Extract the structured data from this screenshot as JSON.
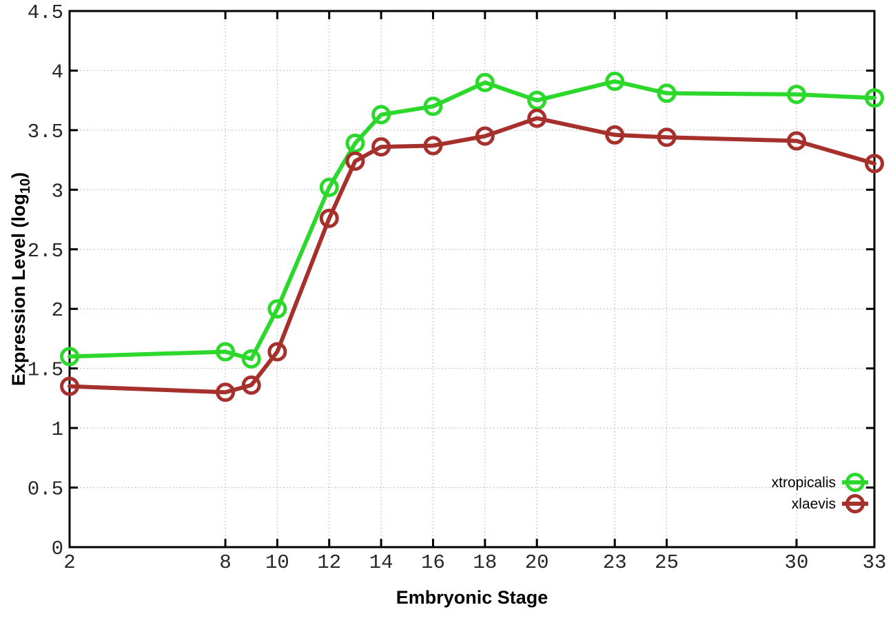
{
  "chart_data": {
    "type": "line",
    "title": "",
    "xlabel": "Embryonic Stage",
    "ylabel": "Expression Level (log10)",
    "ylabel_parts": {
      "pre": "Expression Level (log",
      "sub": "10",
      "post": ")"
    },
    "x": [
      2,
      8,
      9,
      10,
      12,
      13,
      14,
      16,
      18,
      20,
      23,
      25,
      30,
      33
    ],
    "series": [
      {
        "name": "xtropicalis",
        "color": "#2bd82b",
        "values": [
          1.6,
          1.64,
          1.58,
          2.0,
          3.02,
          3.39,
          3.63,
          3.7,
          3.9,
          3.75,
          3.91,
          3.81,
          3.8,
          3.77
        ]
      },
      {
        "name": "xlaevis",
        "color": "#a5302c",
        "values": [
          1.35,
          1.3,
          1.36,
          1.64,
          2.76,
          3.24,
          3.36,
          3.37,
          3.45,
          3.6,
          3.46,
          3.44,
          3.41,
          3.22
        ]
      }
    ],
    "xlim": [
      2,
      33
    ],
    "ylim": [
      0,
      4.5
    ],
    "x_ticks": [
      2,
      8,
      10,
      12,
      14,
      16,
      18,
      20,
      23,
      25,
      30,
      33
    ],
    "y_ticks": [
      0,
      0.5,
      1,
      1.5,
      2,
      2.5,
      3,
      3.5,
      4,
      4.5
    ],
    "y_tick_labels": [
      "0",
      "0.5",
      "1",
      "1.5",
      "2",
      "2.5",
      "3",
      "3.5",
      "4",
      "4.5"
    ],
    "grid": true,
    "legend_position": "bottom-right",
    "marker": "open-circle",
    "style": {
      "background": "#ffffff",
      "grid_color": "#b4b4b4",
      "axis_color": "#000000",
      "tick_label_color": "#262626",
      "line_width": 6,
      "marker_radius": 11.5,
      "marker_stroke": 5
    }
  }
}
